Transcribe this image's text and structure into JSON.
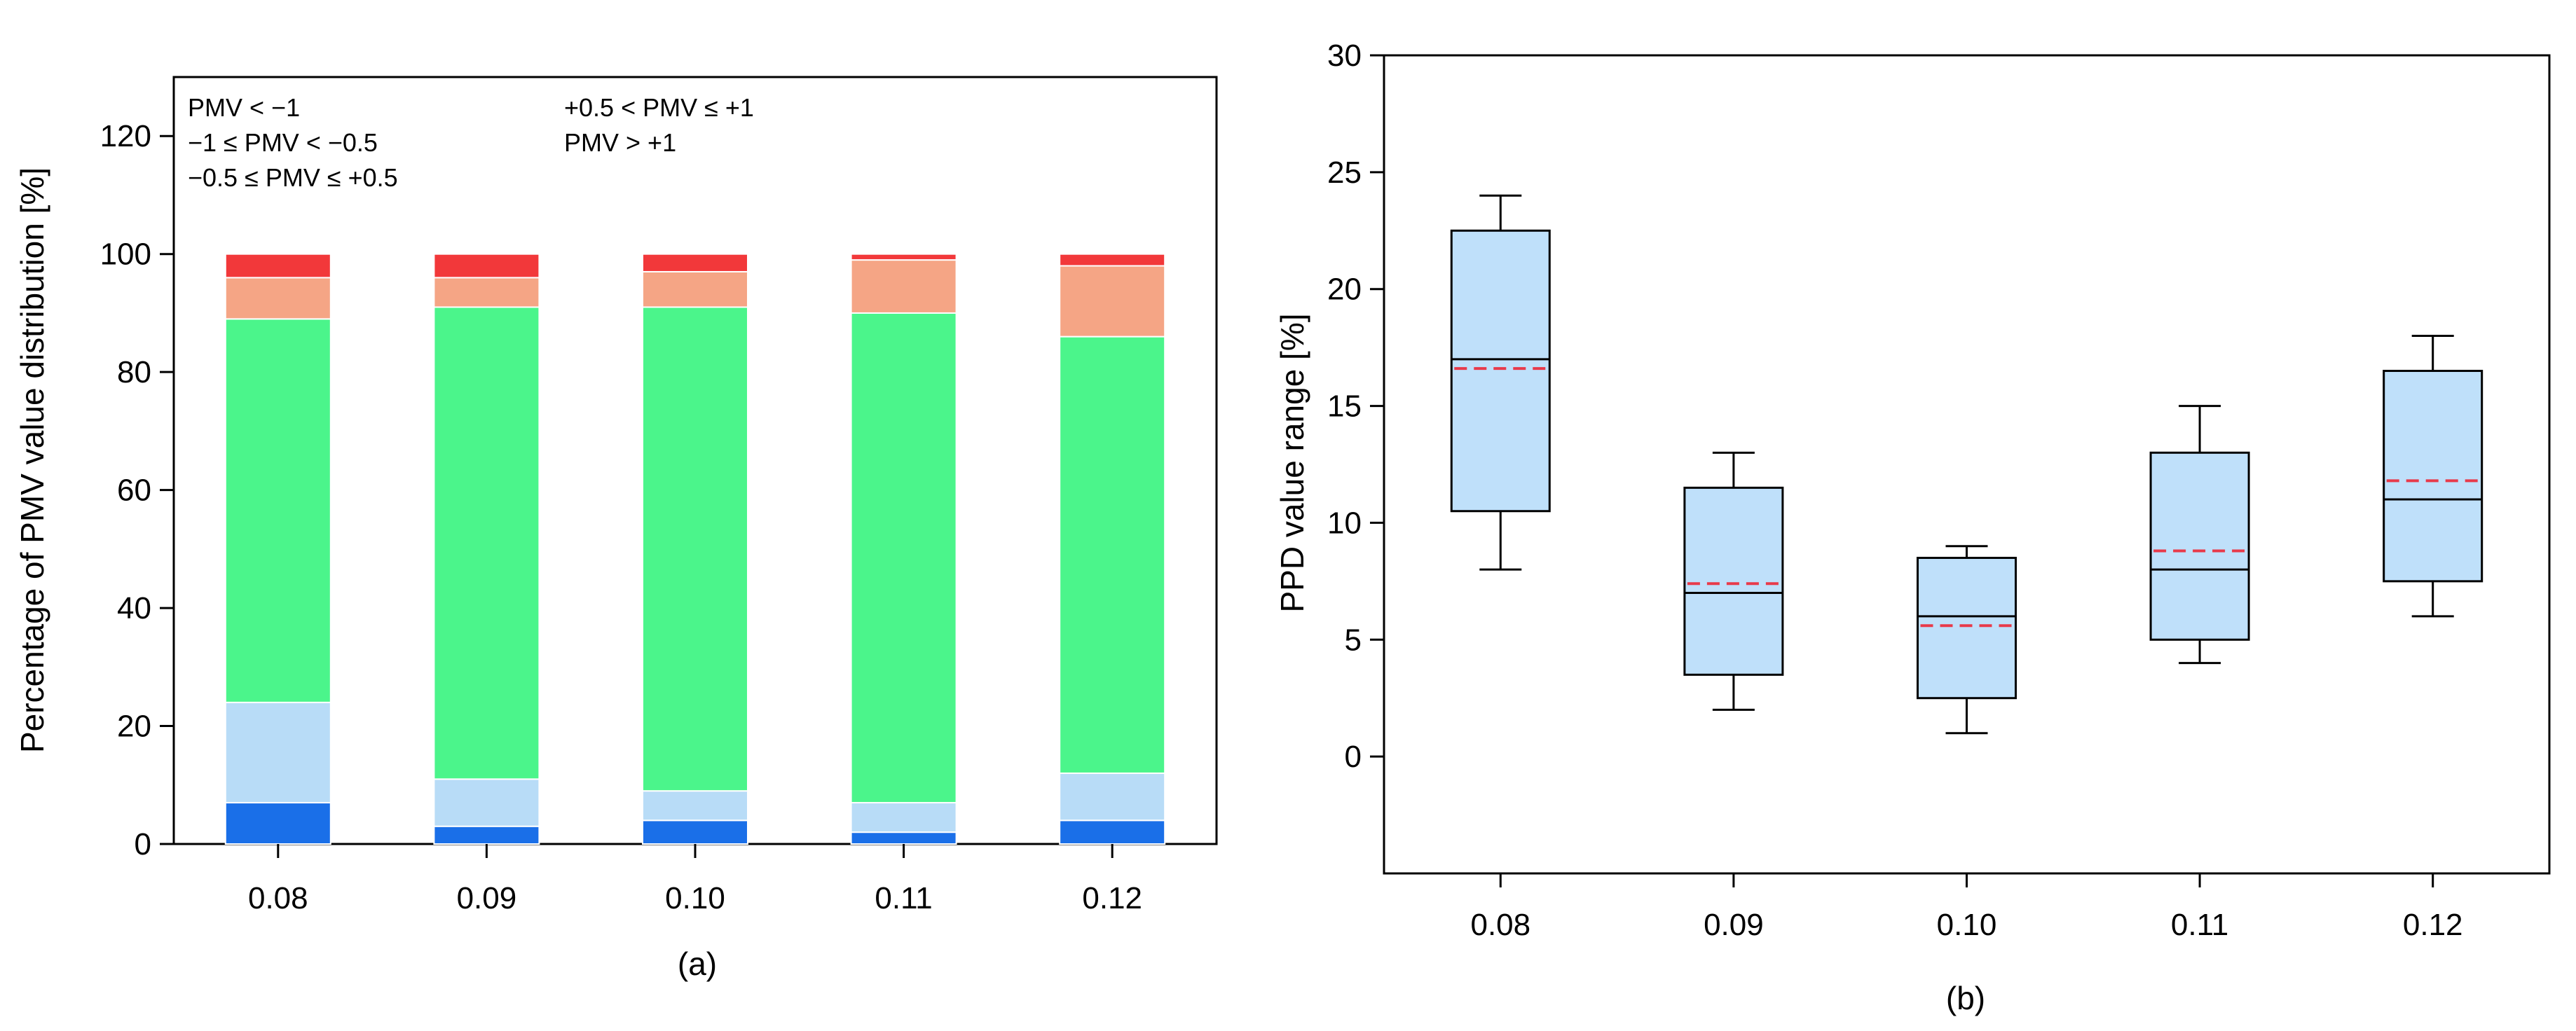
{
  "chart_data": [
    {
      "type": "bar",
      "stacked": true,
      "panel_label": "(a)",
      "xlabel": "",
      "ylabel": "Percentage of PMV value distribution [%]",
      "ylim": [
        0,
        130
      ],
      "yticks": [
        0,
        20,
        40,
        60,
        80,
        100,
        120
      ],
      "categories": [
        "0.08",
        "0.09",
        "0.10",
        "0.11",
        "0.12"
      ],
      "legend_position": "top-left",
      "series": [
        {
          "name": "PMV < −1",
          "color": "#1a6fe8",
          "values": [
            7,
            3,
            4,
            2,
            4
          ]
        },
        {
          "name": "−1 ≤ PMV < −0.5",
          "color": "#b8dcf7",
          "values": [
            17,
            8,
            5,
            5,
            8
          ]
        },
        {
          "name": "−0.5 ≤ PMV ≤ +0.5",
          "color": "#4bf58b",
          "values": [
            65,
            80,
            82,
            83,
            74
          ]
        },
        {
          "name": "+0.5 < PMV ≤ +1",
          "color": "#f5a585",
          "values": [
            7,
            5,
            6,
            9,
            12
          ]
        },
        {
          "name": "PMV > +1",
          "color": "#f2383a",
          "values": [
            4,
            4,
            3,
            1,
            2
          ]
        }
      ],
      "legend": {
        "col1": [
          "PMV < −1",
          "−1 ≤ PMV < −0.5",
          "−0.5 ≤ PMV ≤ +0.5"
        ],
        "col2": [
          "+0.5 < PMV ≤ +1",
          "PMV > +1"
        ]
      }
    },
    {
      "type": "box",
      "panel_label": "(b)",
      "xlabel": "",
      "ylabel": "PPD value range [%]",
      "ylim": [
        -5,
        30
      ],
      "yticks": [
        0,
        5,
        10,
        15,
        20,
        25,
        30
      ],
      "categories": [
        "0.08",
        "0.09",
        "0.10",
        "0.11",
        "0.12"
      ],
      "box_color": "#bfe0fa",
      "mean_color": "#e83a4a",
      "boxes": [
        {
          "category": "0.08",
          "whisker_low": 8,
          "q1": 10.5,
          "median": 17,
          "mean": 16.6,
          "q3": 22.5,
          "whisker_high": 24
        },
        {
          "category": "0.09",
          "whisker_low": 2,
          "q1": 3.5,
          "median": 7,
          "mean": 7.4,
          "q3": 11.5,
          "whisker_high": 13
        },
        {
          "category": "0.10",
          "whisker_low": 1,
          "q1": 2.5,
          "median": 6,
          "mean": 5.6,
          "q3": 8.5,
          "whisker_high": 9
        },
        {
          "category": "0.11",
          "whisker_low": 4,
          "q1": 5,
          "median": 8,
          "mean": 8.8,
          "q3": 13,
          "whisker_high": 15
        },
        {
          "category": "0.12",
          "whisker_low": 6,
          "q1": 7.5,
          "median": 11,
          "mean": 11.8,
          "q3": 16.5,
          "whisker_high": 18
        }
      ]
    }
  ]
}
